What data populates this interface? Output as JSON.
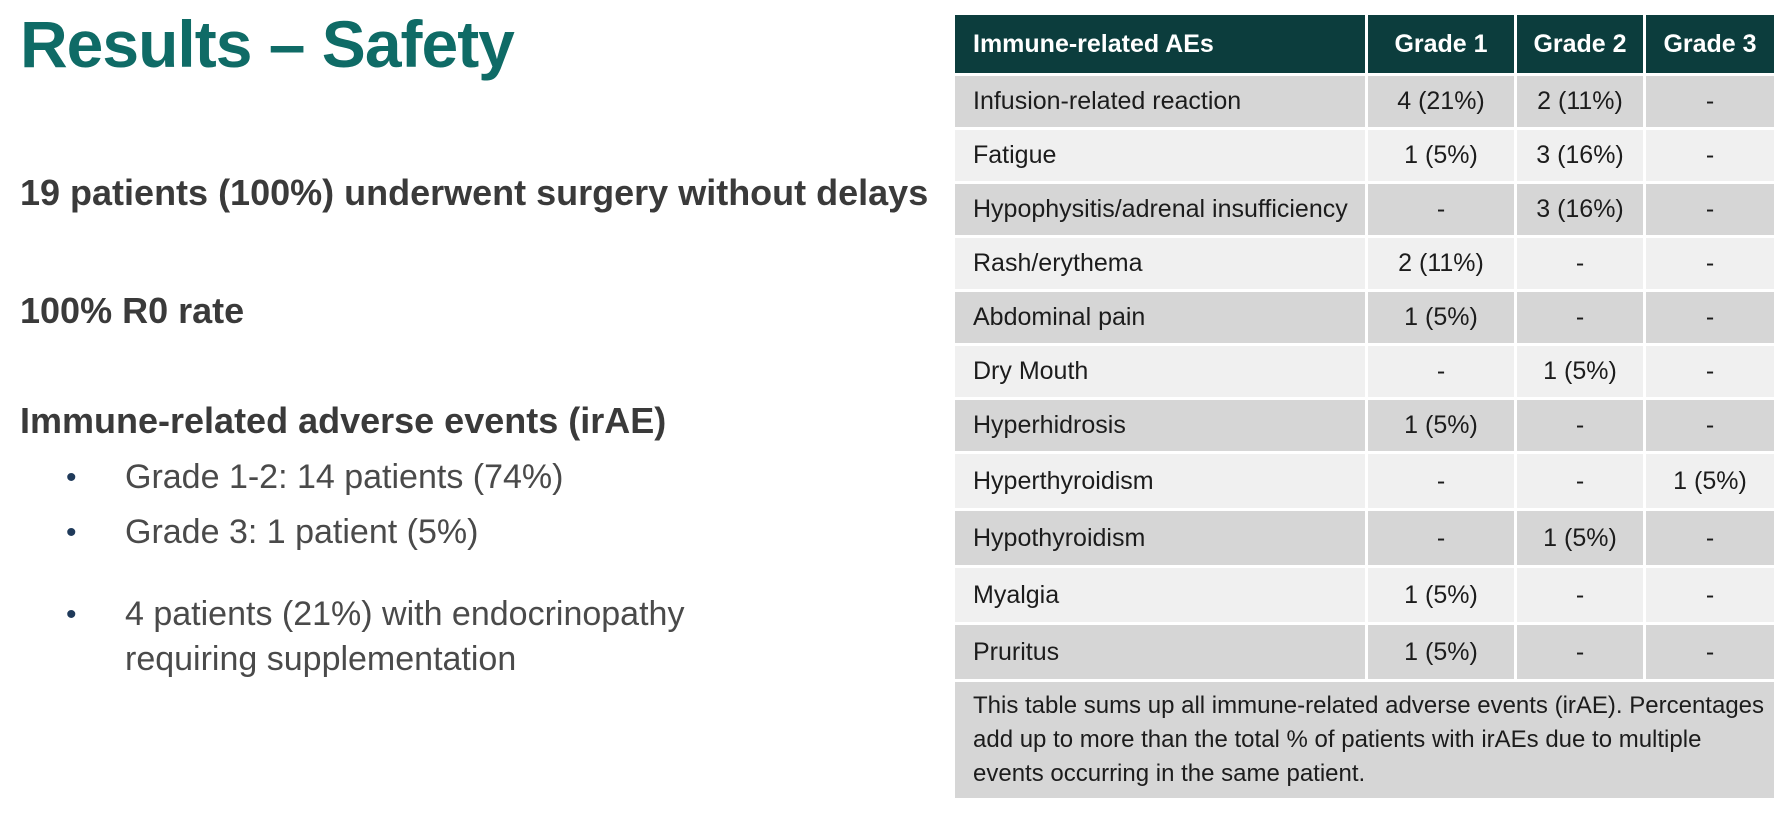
{
  "title": "Results – Safety",
  "statements": {
    "surgery": "19 patients (100%) underwent surgery without delays",
    "r0": "100% R0 rate",
    "irae_heading": "Immune-related adverse events (irAE)"
  },
  "bullets": [
    "Grade 1-2: 14 patients (74%)",
    "Grade 3: 1 patient (5%)",
    "4 patients (21%) with endocrinopathy requiring supplementation"
  ],
  "bullet_glyph": "•",
  "table": {
    "headers": [
      "Immune-related AEs",
      "Grade 1",
      "Grade 2",
      "Grade 3"
    ],
    "rows": [
      [
        "Infusion-related reaction",
        "4 (21%)",
        "2 (11%)",
        "-"
      ],
      [
        "Fatigue",
        "1 (5%)",
        "3 (16%)",
        "-"
      ],
      [
        "Hypophysitis/adrenal insufficiency",
        "-",
        "3 (16%)",
        "-"
      ],
      [
        "Rash/erythema",
        "2 (11%)",
        "-",
        "-"
      ],
      [
        "Abdominal pain",
        "1 (5%)",
        "-",
        "-"
      ],
      [
        "Dry Mouth",
        "-",
        "1 (5%)",
        "-"
      ],
      [
        "Hyperhidrosis",
        "1 (5%)",
        "-",
        "-"
      ],
      [
        "Hyperthyroidism",
        "-",
        "-",
        "1 (5%)"
      ],
      [
        "Hypothyroidism",
        "-",
        "1 (5%)",
        "-"
      ],
      [
        "Myalgia",
        "1 (5%)",
        "-",
        "-"
      ],
      [
        "Pruritus",
        "1 (5%)",
        "-",
        "-"
      ]
    ],
    "footnote": "This table sums up all immune-related adverse events (irAE). Percentages add up to more than the total % of patients with irAEs due to multiple events occurring in the same patient."
  },
  "colors": {
    "title": "#0f6b66",
    "table_header_bg": "#0c3d3d",
    "row_dark": "#d6d6d6",
    "row_light": "#f0f0f0"
  }
}
